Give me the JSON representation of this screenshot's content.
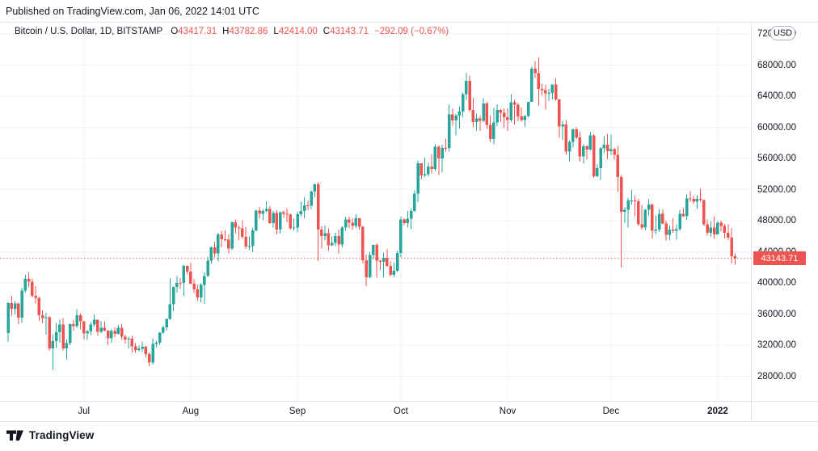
{
  "published_line": "Published on TradingView.com, Jan 06, 2022 14:01 UTC",
  "header": {
    "symbol": "Bitcoin / U.S. Dollar, 1D, BITSTAMP",
    "o_label": "O",
    "o_value": "43417.31",
    "h_label": "H",
    "h_value": "43782.86",
    "l_label": "L",
    "l_value": "42414.00",
    "c_label": "C",
    "c_value": "43143.71",
    "change": "−292.09 (−0.67%)"
  },
  "price_axis": {
    "currency_label": "USD",
    "tick_labels": [
      "72000.00",
      "68000.00",
      "64000.00",
      "60000.00",
      "56000.00",
      "52000.00",
      "48000.00",
      "44000.00",
      "40000.00",
      "36000.00",
      "32000.00",
      "28000.00"
    ],
    "last_price_label": "43143.71"
  },
  "time_axis": {
    "labels": [
      {
        "text": "Jul",
        "candle_index": 22,
        "bold": false
      },
      {
        "text": "Aug",
        "candle_index": 53,
        "bold": false
      },
      {
        "text": "Sep",
        "candle_index": 84,
        "bold": false
      },
      {
        "text": "Oct",
        "candle_index": 114,
        "bold": false
      },
      {
        "text": "Nov",
        "candle_index": 145,
        "bold": false
      },
      {
        "text": "Dec",
        "candle_index": 175,
        "bold": false
      },
      {
        "text": "2022",
        "candle_index": 206,
        "bold": true
      }
    ]
  },
  "footer": {
    "brand": "TradingView"
  },
  "chart_data": {
    "type": "candlestick",
    "title": "Bitcoin / U.S. Dollar, 1D, BITSTAMP",
    "interval": "1D",
    "x_start": "2021-06-09",
    "x_end": "2022-01-06",
    "ylim": [
      25000,
      73250
    ],
    "y_ticks": [
      28000,
      32000,
      36000,
      40000,
      44000,
      48000,
      52000,
      56000,
      60000,
      64000,
      68000,
      72000
    ],
    "grid": true,
    "last_price": 43143.71,
    "colors": {
      "up": "#26a69a",
      "down": "#ef5350",
      "last_price_line": "#ef5350",
      "grid": "#f0f3fa"
    },
    "candles_format": [
      "open",
      "high",
      "low",
      "close"
    ],
    "candles": [
      [
        33575,
        37534,
        32405,
        37388
      ],
      [
        37388,
        38348,
        35782,
        36675
      ],
      [
        36675,
        37680,
        35936,
        37332
      ],
      [
        37332,
        37447,
        34681,
        35546
      ],
      [
        35546,
        39380,
        34833,
        39015
      ],
      [
        39015,
        41064,
        38730,
        40526
      ],
      [
        40526,
        41330,
        39506,
        40144
      ],
      [
        40144,
        40527,
        38116,
        38349
      ],
      [
        38349,
        39559,
        37365,
        38092
      ],
      [
        38092,
        38202,
        35129,
        35819
      ],
      [
        35819,
        36457,
        34803,
        35483
      ],
      [
        35483,
        36139,
        33336,
        35600
      ],
      [
        35600,
        35750,
        31251,
        31608
      ],
      [
        31608,
        33298,
        28824,
        32509
      ],
      [
        32509,
        34881,
        31683,
        33678
      ],
      [
        33678,
        35296,
        32286,
        34663
      ],
      [
        34663,
        35500,
        31275,
        31584
      ],
      [
        31584,
        32717,
        30151,
        32283
      ],
      [
        32283,
        34749,
        32022,
        34700
      ],
      [
        34700,
        35297,
        33862,
        34434
      ],
      [
        34434,
        36600,
        34225,
        35867
      ],
      [
        35867,
        36088,
        34013,
        35040
      ],
      [
        35040,
        35059,
        32711,
        33504
      ],
      [
        33504,
        33977,
        32699,
        33786
      ],
      [
        33786,
        34945,
        33316,
        34669
      ],
      [
        34669,
        35967,
        34371,
        35286
      ],
      [
        35286,
        35290,
        33213,
        33690
      ],
      [
        33690,
        35119,
        33532,
        34220
      ],
      [
        34220,
        35053,
        33777,
        33862
      ],
      [
        33862,
        33929,
        32077,
        32877
      ],
      [
        32877,
        34100,
        32261,
        33798
      ],
      [
        33798,
        34262,
        33035,
        33437
      ],
      [
        33437,
        34608,
        33332,
        34240
      ],
      [
        34240,
        34678,
        32658,
        33086
      ],
      [
        33086,
        33340,
        32202,
        32729
      ],
      [
        32729,
        33114,
        31601,
        32820
      ],
      [
        32820,
        33185,
        31050,
        31866
      ],
      [
        31866,
        32245,
        31019,
        31383
      ],
      [
        31383,
        31955,
        31164,
        31520
      ],
      [
        31520,
        32435,
        31108,
        31778
      ],
      [
        31778,
        31890,
        30407,
        30839
      ],
      [
        30839,
        31054,
        29278,
        29790
      ],
      [
        29790,
        32858,
        29482,
        32144
      ],
      [
        32144,
        32591,
        31708,
        32287
      ],
      [
        32287,
        33650,
        32035,
        33634
      ],
      [
        33634,
        34500,
        33401,
        34283
      ],
      [
        34283,
        35398,
        33851,
        35381
      ],
      [
        35381,
        40550,
        35234,
        37237
      ],
      [
        37237,
        39542,
        36383,
        39457
      ],
      [
        39457,
        40900,
        38772,
        40019
      ],
      [
        40019,
        40640,
        39200,
        40016
      ],
      [
        40016,
        42316,
        38355,
        42206
      ],
      [
        42206,
        42255,
        41080,
        41461
      ],
      [
        41461,
        42605,
        39853,
        39878
      ],
      [
        39878,
        40480,
        38722,
        39147
      ],
      [
        39147,
        39780,
        37642,
        38130
      ],
      [
        38130,
        39958,
        37509,
        39745
      ],
      [
        39745,
        41350,
        37300,
        40863
      ],
      [
        40863,
        43392,
        40792,
        42836
      ],
      [
        42836,
        44700,
        42446,
        44572
      ],
      [
        44572,
        45310,
        43261,
        43794
      ],
      [
        43794,
        46454,
        42779,
        46253
      ],
      [
        46253,
        46690,
        44589,
        45585
      ],
      [
        45585,
        46743,
        45341,
        45551
      ],
      [
        45551,
        46218,
        43770,
        44407
      ],
      [
        44407,
        47886,
        44217,
        47800
      ],
      [
        47800,
        48144,
        46324,
        47096
      ],
      [
        47096,
        47372,
        45514,
        46995
      ],
      [
        46995,
        48053,
        45660,
        45901
      ],
      [
        45901,
        47160,
        44376,
        44686
      ],
      [
        44686,
        46000,
        44204,
        44714
      ],
      [
        44714,
        47060,
        43955,
        46760
      ],
      [
        46760,
        49380,
        46622,
        49322
      ],
      [
        49322,
        49757,
        48251,
        48869
      ],
      [
        48869,
        49500,
        48050,
        49254
      ],
      [
        49254,
        50505,
        49029,
        49500
      ],
      [
        49500,
        49859,
        47600,
        47680
      ],
      [
        47680,
        49264,
        47126,
        48973
      ],
      [
        48973,
        49352,
        46250,
        46843
      ],
      [
        46843,
        49149,
        46348,
        49069
      ],
      [
        49069,
        49299,
        48370,
        48895
      ],
      [
        48895,
        49633,
        47800,
        48767
      ],
      [
        48767,
        48890,
        46853,
        46991
      ],
      [
        46991,
        48240,
        46706,
        47112
      ],
      [
        47112,
        49156,
        46512,
        48810
      ],
      [
        48810,
        50450,
        48584,
        49246
      ],
      [
        49246,
        51000,
        48316,
        49999
      ],
      [
        49999,
        50535,
        49370,
        49915
      ],
      [
        49915,
        51900,
        49450,
        51756
      ],
      [
        51756,
        52780,
        51034,
        52663
      ],
      [
        52663,
        52920,
        42830,
        46863
      ],
      [
        46863,
        47340,
        44412,
        46048
      ],
      [
        46048,
        47399,
        45511,
        46395
      ],
      [
        46395,
        47033,
        44132,
        44850
      ],
      [
        44850,
        45989,
        44722,
        45161
      ],
      [
        45161,
        46460,
        44742,
        46018
      ],
      [
        46018,
        46880,
        43750,
        44945
      ],
      [
        44945,
        47250,
        44594,
        47100
      ],
      [
        47100,
        48450,
        46706,
        48143
      ],
      [
        48143,
        48500,
        47021,
        47737
      ],
      [
        47737,
        48296,
        46829,
        47299
      ],
      [
        47299,
        48825,
        47041,
        48292
      ],
      [
        48292,
        48372,
        46840,
        47240
      ],
      [
        47240,
        47330,
        42500,
        42900
      ],
      [
        42900,
        43639,
        39600,
        40710
      ],
      [
        40710,
        43978,
        40565,
        43562
      ],
      [
        43562,
        44934,
        43069,
        44891
      ],
      [
        44891,
        45100,
        40675,
        42839
      ],
      [
        42839,
        42961,
        41676,
        42701
      ],
      [
        42701,
        43919,
        40750,
        43204
      ],
      [
        43204,
        44350,
        42098,
        42171
      ],
      [
        42171,
        42775,
        40888,
        41049
      ],
      [
        41049,
        42590,
        40753,
        41553
      ],
      [
        41553,
        44100,
        41410,
        43824
      ],
      [
        43824,
        48500,
        43283,
        48165
      ],
      [
        48165,
        48336,
        47430,
        47686
      ],
      [
        47686,
        49228,
        47107,
        48243
      ],
      [
        48243,
        49536,
        46891,
        49245
      ],
      [
        49245,
        51886,
        49072,
        51505
      ],
      [
        51505,
        55750,
        50382,
        55361
      ],
      [
        55361,
        55400,
        53357,
        53805
      ],
      [
        53805,
        56113,
        53634,
        53955
      ],
      [
        53955,
        55489,
        53661,
        54949
      ],
      [
        54949,
        56545,
        54080,
        54659
      ],
      [
        54659,
        57839,
        54415,
        57484
      ],
      [
        57484,
        57680,
        53879,
        56000
      ],
      [
        56000,
        57777,
        54167,
        57372
      ],
      [
        57372,
        58520,
        56818,
        57347
      ],
      [
        57347,
        62933,
        56868,
        61672
      ],
      [
        61672,
        62378,
        60206,
        60875
      ],
      [
        60875,
        61718,
        58963,
        61528
      ],
      [
        61528,
        62695,
        59844,
        62026
      ],
      [
        62026,
        64486,
        61322,
        64280
      ],
      [
        64280,
        67000,
        63481,
        65992
      ],
      [
        65992,
        66650,
        62000,
        62210
      ],
      [
        62210,
        63732,
        60000,
        60688
      ],
      [
        60688,
        61747,
        59562,
        61125
      ],
      [
        61125,
        61499,
        59510,
        60852
      ],
      [
        60852,
        63729,
        60632,
        63078
      ],
      [
        63078,
        63293,
        59817,
        60328
      ],
      [
        60328,
        61496,
        58100,
        58470
      ],
      [
        58470,
        62499,
        57820,
        60600
      ],
      [
        60600,
        62980,
        60174,
        62253
      ],
      [
        62253,
        62359,
        60673,
        61888
      ],
      [
        61888,
        62437,
        59945,
        61318
      ],
      [
        61318,
        62419,
        59508,
        60956
      ],
      [
        60956,
        64270,
        60676,
        63226
      ],
      [
        63226,
        63516,
        60382,
        62896
      ],
      [
        62896,
        63123,
        60799,
        61395
      ],
      [
        61395,
        62541,
        60721,
        60937
      ],
      [
        60937,
        61560,
        60050,
        61470
      ],
      [
        61470,
        63286,
        61322,
        63273
      ],
      [
        63273,
        67789,
        63273,
        67554
      ],
      [
        67554,
        68530,
        66316,
        66947
      ],
      [
        66947,
        69000,
        62822,
        64940
      ],
      [
        64940,
        65600,
        64102,
        64804
      ],
      [
        64804,
        65460,
        62278,
        64380
      ],
      [
        64380,
        64918,
        63360,
        64400
      ],
      [
        64400,
        65495,
        63576,
        65519
      ],
      [
        65519,
        66339,
        63421,
        63606
      ],
      [
        63606,
        63617,
        58638,
        60104
      ],
      [
        60104,
        60823,
        58373,
        60368
      ],
      [
        60368,
        60948,
        56479,
        56891
      ],
      [
        56891,
        58320,
        55610,
        58119
      ],
      [
        58119,
        59859,
        57469,
        59730
      ],
      [
        59730,
        60028,
        58518,
        58706
      ],
      [
        58706,
        59444,
        55600,
        56247
      ],
      [
        56247,
        57875,
        55317,
        57541
      ],
      [
        57541,
        57735,
        55837,
        57141
      ],
      [
        57141,
        59367,
        57000,
        58960
      ],
      [
        58960,
        59183,
        53500,
        53736
      ],
      [
        53736,
        55280,
        53610,
        54758
      ],
      [
        54758,
        57445,
        53256,
        57274
      ],
      [
        57274,
        58865,
        56746,
        57776
      ],
      [
        57776,
        59176,
        55875,
        56950
      ],
      [
        56950,
        59053,
        56458,
        57184
      ],
      [
        57184,
        57375,
        55777,
        56485
      ],
      [
        56485,
        57600,
        51680,
        53601
      ],
      [
        53601,
        53859,
        42000,
        49152
      ],
      [
        49152,
        49699,
        47727,
        49396
      ],
      [
        49396,
        50891,
        47100,
        50582
      ],
      [
        50582,
        51936,
        50092,
        50610
      ],
      [
        50610,
        51182,
        48636,
        50477
      ],
      [
        50477,
        50797,
        47320,
        47546
      ],
      [
        47546,
        50015,
        46852,
        47140
      ],
      [
        47140,
        49485,
        46751,
        49389
      ],
      [
        49389,
        50777,
        48638,
        50098
      ],
      [
        50098,
        50189,
        45672,
        46702
      ],
      [
        46702,
        48700,
        46290,
        46880
      ],
      [
        46880,
        49500,
        46547,
        48896
      ],
      [
        48896,
        49436,
        47511,
        47645
      ],
      [
        47645,
        47995,
        45456,
        46178
      ],
      [
        46178,
        47392,
        45500,
        46854
      ],
      [
        46854,
        48300,
        46424,
        46707
      ],
      [
        46707,
        47537,
        45558,
        46914
      ],
      [
        46914,
        49328,
        46678,
        48889
      ],
      [
        48889,
        49576,
        48450,
        48588
      ],
      [
        48588,
        51375,
        48114,
        50838
      ],
      [
        50838,
        51810,
        50384,
        50820
      ],
      [
        50820,
        51150,
        50184,
        50428
      ],
      [
        50428,
        51278,
        49520,
        50809
      ],
      [
        50809,
        52088,
        50449,
        50640
      ],
      [
        50640,
        50704,
        47313,
        47543
      ],
      [
        47543,
        48139,
        46096,
        46464
      ],
      [
        46464,
        47900,
        45900,
        47120
      ],
      [
        47120,
        48548,
        45678,
        46217
      ],
      [
        46217,
        47954,
        46208,
        47738
      ],
      [
        47738,
        47990,
        46654,
        47311
      ],
      [
        47311,
        47570,
        45696,
        46430
      ],
      [
        46430,
        47532,
        45532,
        45832
      ],
      [
        45832,
        47070,
        42500,
        43425
      ],
      [
        43417.31,
        43782.86,
        42414.0,
        43143.71
      ]
    ]
  }
}
